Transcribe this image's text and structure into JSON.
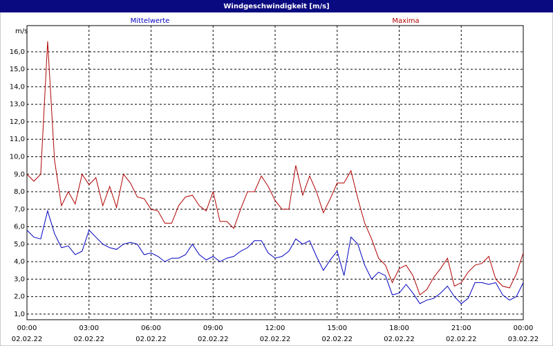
{
  "chart_data": {
    "type": "line",
    "title": "Windgeschwindigkeit [m/s]",
    "y_label": "m/s",
    "x": [
      0,
      20,
      40,
      60,
      80,
      100,
      120,
      140,
      160,
      180,
      200,
      220,
      240,
      260,
      280,
      300,
      320,
      340,
      360,
      380,
      400,
      420,
      440,
      460,
      480,
      500,
      520,
      540,
      560,
      580,
      600,
      620,
      640,
      660,
      680,
      700,
      720,
      740,
      760,
      780,
      800,
      820,
      840,
      860,
      880,
      900,
      920,
      940,
      960,
      980,
      1000,
      1020,
      1040,
      1060,
      1080,
      1100,
      1120,
      1140,
      1160,
      1180,
      1200,
      1220,
      1240,
      1260,
      1280,
      1300,
      1320,
      1340,
      1360,
      1380,
      1400,
      1420,
      1440
    ],
    "series": [
      {
        "name": "Mittelwerte",
        "color": "#0000c0",
        "values": [
          5.8,
          5.4,
          5.3,
          6.9,
          5.6,
          4.8,
          4.9,
          4.4,
          4.6,
          5.8,
          5.4,
          5.0,
          4.8,
          4.7,
          5.0,
          5.1,
          5.0,
          4.4,
          4.5,
          4.3,
          4.0,
          4.2,
          4.2,
          4.4,
          5.0,
          4.4,
          4.1,
          4.3,
          4.0,
          4.2,
          4.3,
          4.6,
          4.8,
          5.2,
          5.2,
          4.5,
          4.2,
          4.3,
          4.6,
          5.3,
          5.0,
          5.2,
          4.3,
          3.5,
          4.1,
          4.6,
          3.2,
          5.4,
          5.0,
          3.8,
          3.0,
          3.4,
          3.2,
          2.1,
          2.2,
          2.7,
          2.2,
          1.6,
          1.8,
          1.9,
          2.2,
          2.6,
          2.0,
          1.6,
          1.9,
          2.8,
          2.8,
          2.7,
          2.8,
          2.1,
          1.8,
          2.0,
          2.8
        ]
      },
      {
        "name": "Maxima",
        "color": "#b00000",
        "values": [
          9.0,
          8.6,
          9.0,
          16.6,
          9.8,
          7.2,
          8.0,
          7.3,
          9.0,
          8.4,
          8.8,
          7.2,
          8.3,
          7.1,
          9.0,
          8.5,
          7.7,
          7.6,
          7.0,
          6.9,
          6.2,
          6.2,
          7.2,
          7.7,
          7.8,
          7.2,
          6.9,
          8.0,
          6.3,
          6.3,
          5.9,
          7.0,
          8.0,
          8.0,
          8.9,
          8.3,
          7.5,
          7.0,
          7.0,
          9.5,
          7.8,
          8.9,
          8.0,
          6.8,
          7.6,
          8.5,
          8.5,
          9.2,
          7.6,
          6.2,
          5.3,
          4.2,
          3.8,
          2.8,
          3.6,
          3.8,
          3.2,
          2.1,
          2.4,
          3.1,
          3.6,
          4.2,
          2.6,
          2.8,
          3.4,
          3.8,
          3.9,
          4.3,
          3.0,
          2.6,
          2.5,
          3.3,
          4.5
        ]
      }
    ],
    "xlim": [
      0,
      1440
    ],
    "ylim": [
      0.68,
      17.5
    ],
    "yticks": [
      {
        "value": 1,
        "label": "1,0"
      },
      {
        "value": 2,
        "label": "2,0"
      },
      {
        "value": 3,
        "label": "3,0"
      },
      {
        "value": 4,
        "label": "4,0"
      },
      {
        "value": 5,
        "label": "5,0"
      },
      {
        "value": 6,
        "label": "6,0"
      },
      {
        "value": 7,
        "label": "7,0"
      },
      {
        "value": 8,
        "label": "8,0"
      },
      {
        "value": 9,
        "label": "9,0"
      },
      {
        "value": 10,
        "label": "10,0"
      },
      {
        "value": 11,
        "label": "11,0"
      },
      {
        "value": 12,
        "label": "12,0"
      },
      {
        "value": 13,
        "label": "13,0"
      },
      {
        "value": 14,
        "label": "14,0"
      },
      {
        "value": 15,
        "label": "15,0"
      },
      {
        "value": 16,
        "label": "16,0"
      }
    ],
    "xticks": [
      {
        "value": 0,
        "label": "00:00"
      },
      {
        "value": 180,
        "label": "03:00"
      },
      {
        "value": 360,
        "label": "06:00"
      },
      {
        "value": 540,
        "label": "09:00"
      },
      {
        "value": 720,
        "label": "12:00"
      },
      {
        "value": 900,
        "label": "15:00"
      },
      {
        "value": 1080,
        "label": "18:00"
      },
      {
        "value": 1260,
        "label": "21:00"
      },
      {
        "value": 1440,
        "label": "00:00"
      }
    ],
    "xtick_dates": [
      "02.02.22",
      "02.02.22",
      "02.02.22",
      "02.02.22",
      "02.02.22",
      "02.02.22",
      "02.02.22",
      "02.02.22",
      "03.02.22"
    ],
    "grid": true
  }
}
